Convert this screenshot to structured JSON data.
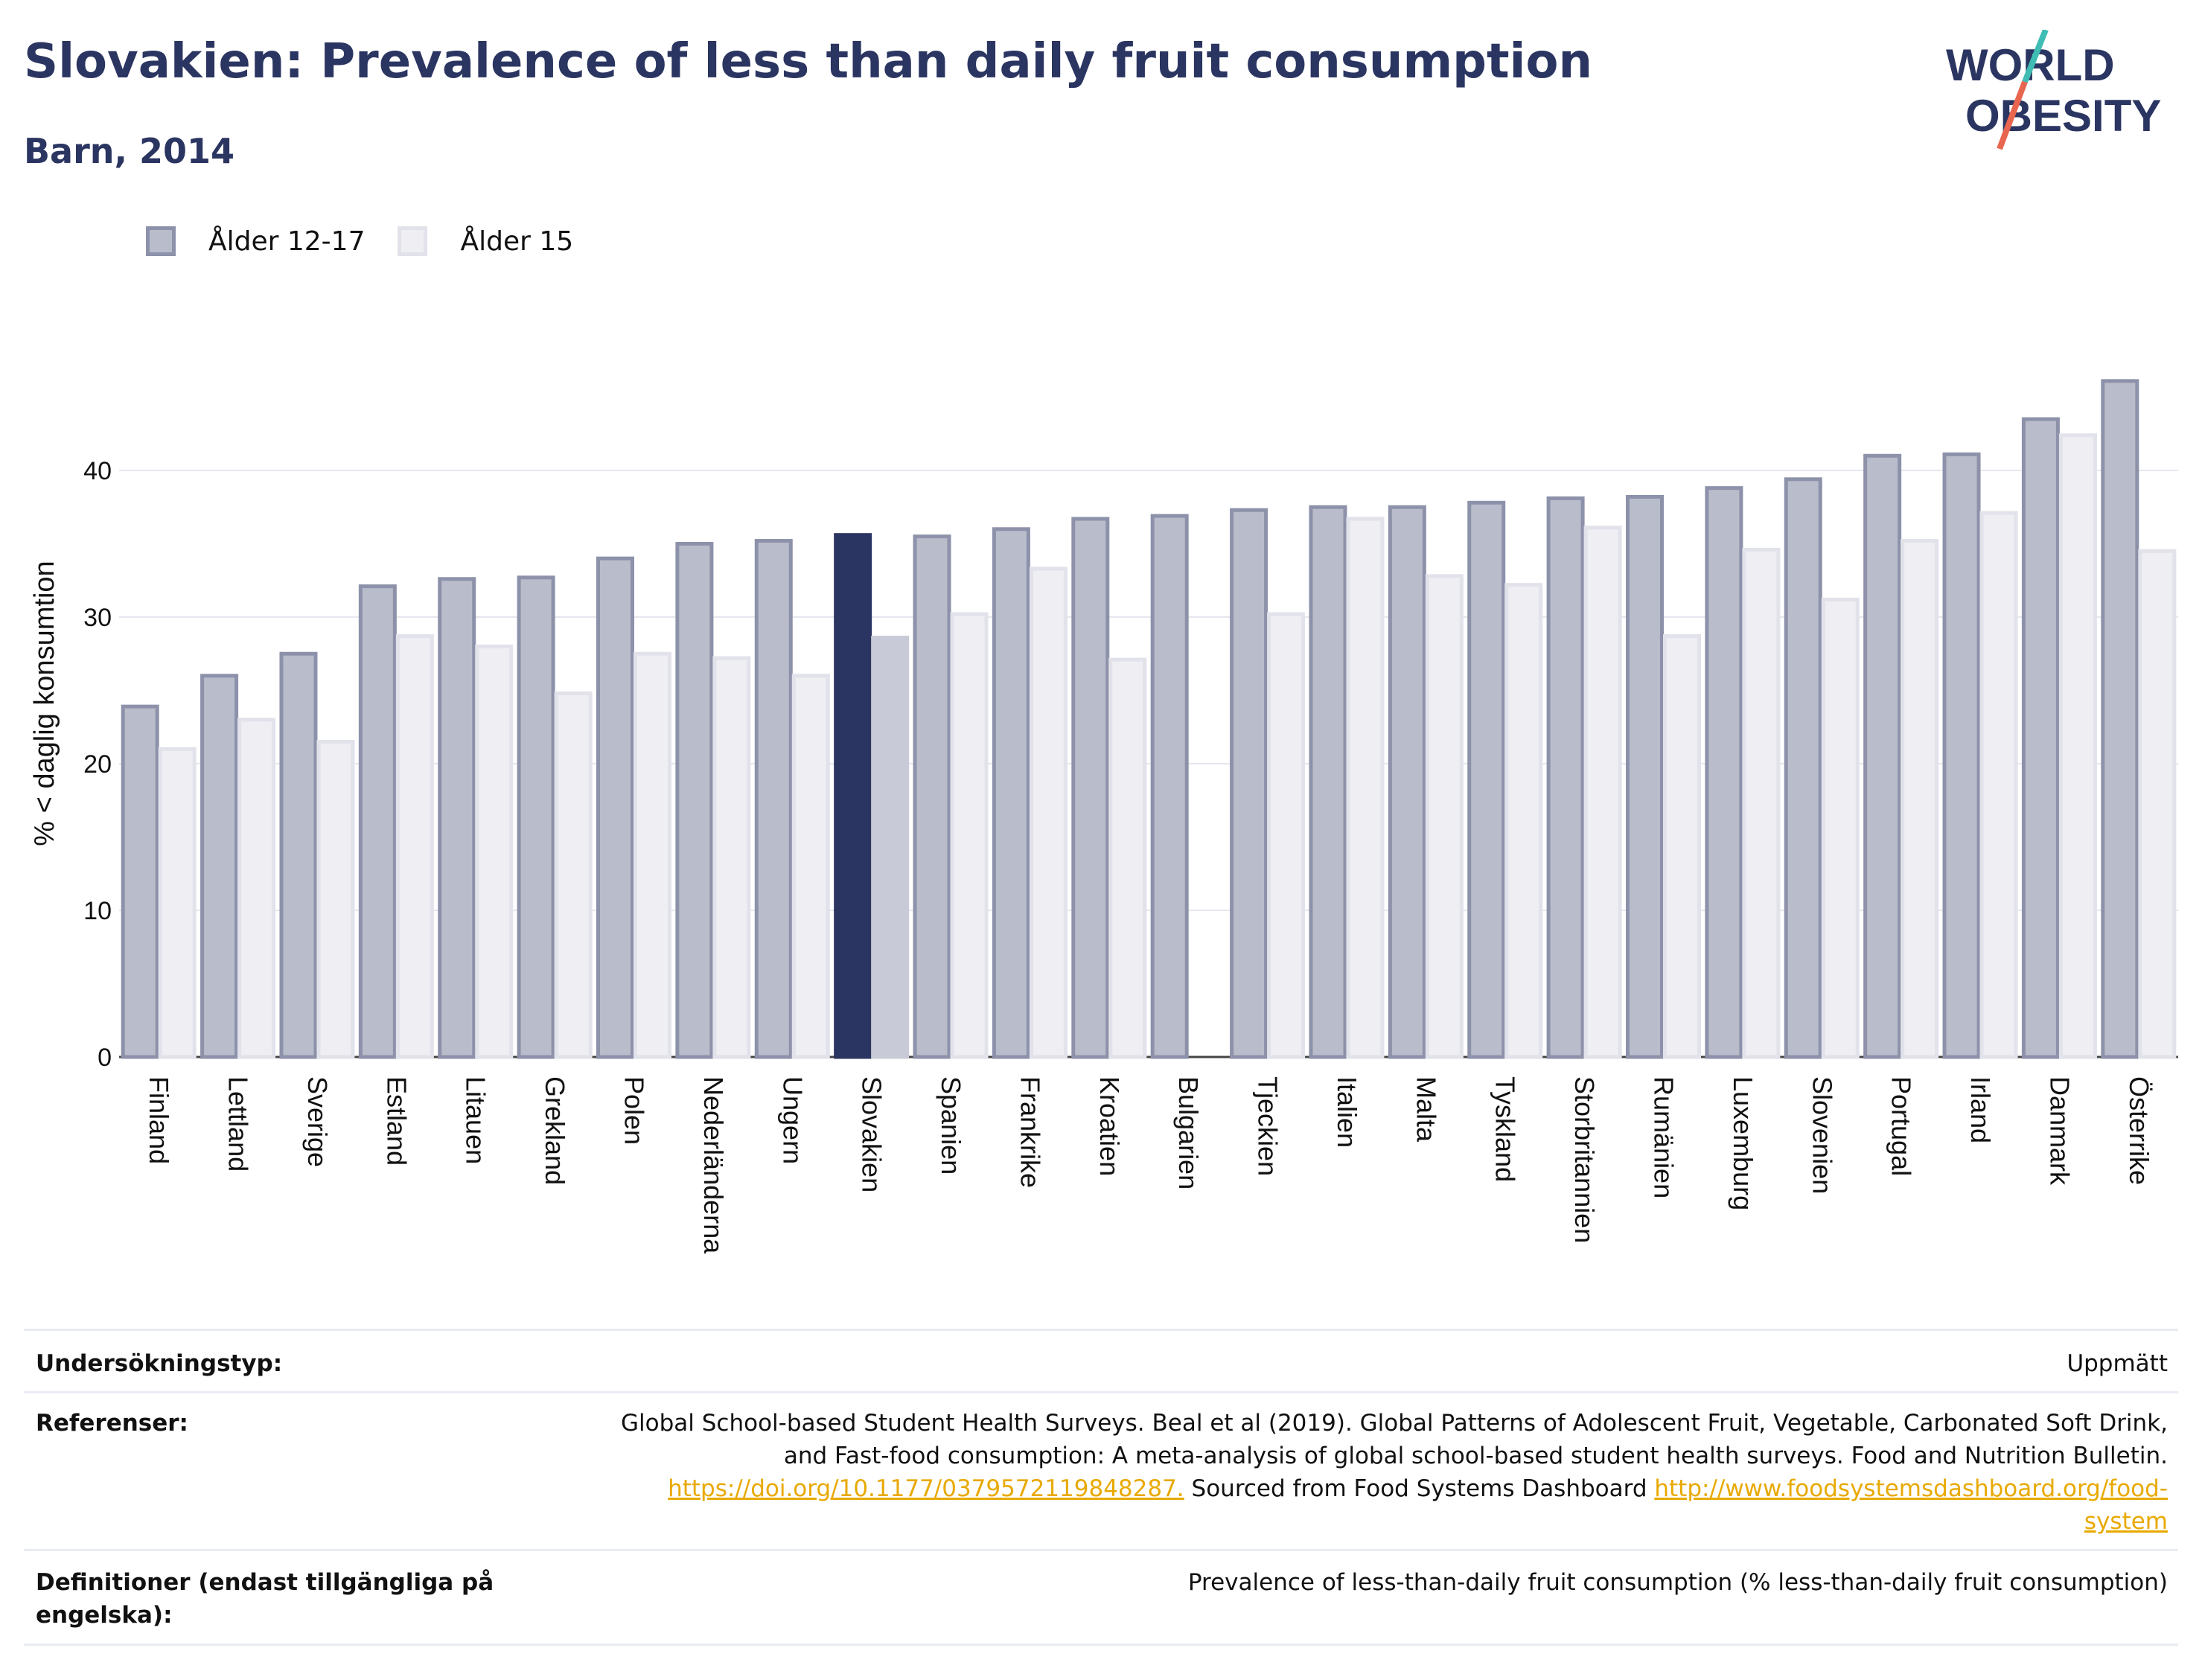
{
  "title": "Slovakien: Prevalence of less than daily fruit consumption",
  "subtitle": "Barn, 2014",
  "logo": {
    "line1": "WORLD",
    "line2": "OBESITY"
  },
  "legend": [
    {
      "label": "Ålder 12-17",
      "color": "#8d92aa"
    },
    {
      "label": "Ålder 15",
      "color": "#e1e2ea"
    }
  ],
  "colors": {
    "series1_fill": "#b9bccb",
    "series1_stroke": "#8d92aa",
    "series2_fill": "#eeeef3",
    "series2_stroke": "#e1e2ea",
    "highlight1": "#2b3561",
    "highlight2": "#c9cad7",
    "title": "#2b3561",
    "link": "#e8a900"
  },
  "chart_data": {
    "type": "bar",
    "ylabel": "% < daglig konsumtion",
    "xlabel": "",
    "ylim": [
      0,
      47
    ],
    "yticks": [
      0,
      10,
      20,
      30,
      40
    ],
    "grid": true,
    "legend_position": "top-left",
    "highlight_category": "Slovakien",
    "categories": [
      "Finland",
      "Lettland",
      "Sverige",
      "Estland",
      "Litauen",
      "Grekland",
      "Polen",
      "Nederländerna",
      "Ungern",
      "Slovakien",
      "Spanien",
      "Frankrike",
      "Kroatien",
      "Bulgarien",
      "Tjeckien",
      "Italien",
      "Malta",
      "Tyskland",
      "Storbritannien",
      "Rumänien",
      "Luxemburg",
      "Slovenien",
      "Portugal",
      "Irland",
      "Danmark",
      "Österrike"
    ],
    "series": [
      {
        "name": "Ålder 12-17",
        "values": [
          23.9,
          26.0,
          27.5,
          32.1,
          32.6,
          32.7,
          34.0,
          35.0,
          35.2,
          35.6,
          35.5,
          36.0,
          36.7,
          36.9,
          37.3,
          37.5,
          37.5,
          37.8,
          38.1,
          38.2,
          38.8,
          39.4,
          41.0,
          41.1,
          43.5,
          46.1
        ]
      },
      {
        "name": "Ålder 15",
        "values": [
          21.0,
          23.0,
          21.5,
          28.7,
          28.0,
          24.8,
          27.5,
          27.2,
          26.0,
          28.6,
          30.2,
          33.3,
          27.1,
          null,
          30.2,
          36.7,
          32.8,
          32.2,
          36.1,
          28.7,
          34.6,
          31.2,
          35.2,
          37.1,
          42.4,
          34.5
        ]
      }
    ]
  },
  "meta": {
    "survey_type_label": "Undersökningstyp:",
    "survey_type_value": "Uppmätt",
    "references_label": "Referenser:",
    "references_line1": "Global School-based Student Health Surveys. Beal et al (2019). Global Patterns of Adolescent Fruit, Vegetable, Carbonated Soft Drink,",
    "references_line2": "and Fast-food consumption: A meta-analysis of global school-based student health surveys. Food and Nutrition Bulletin.",
    "references_link1": "https://doi.org/10.1177/0379572119848287.",
    "references_mid": " Sourced from Food Systems Dashboard ",
    "references_link2a": "http://www.foodsystemsdashboard.org/food-",
    "references_link2b": "system",
    "definitions_label_line1": "Definitioner (endast tillgängliga på",
    "definitions_label_line2": "engelska):",
    "definitions_value": "Prevalence of less-than-daily fruit consumption (% less-than-daily fruit consumption)"
  }
}
